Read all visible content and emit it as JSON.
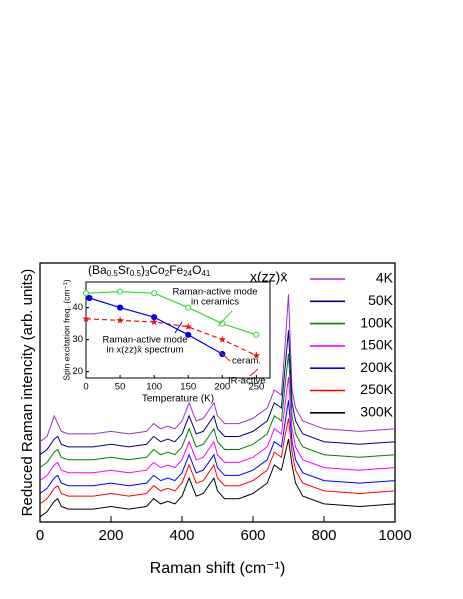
{
  "chart_data": [
    {
      "type": "line",
      "label": "x(zz)x̄",
      "x_label": "Raman shift (cm⁻¹)",
      "y_label": "Reduced Raman intencity (arb. units)",
      "x": [
        0,
        20,
        40,
        50,
        60,
        80,
        100,
        150,
        200,
        250,
        300,
        320,
        340,
        360,
        380,
        400,
        420,
        440,
        460,
        480,
        490,
        500,
        520,
        560,
        600,
        640,
        660,
        680,
        690,
        700,
        710,
        720,
        740,
        800,
        900,
        1000
      ],
      "xlim": [
        0,
        1000
      ],
      "xticks": [
        0,
        200,
        400,
        600,
        800,
        1000
      ],
      "ylim": [
        0,
        100
      ],
      "legend": "right",
      "series": [
        {
          "name": "4K",
          "color": "#9933cc",
          "values": [
            31,
            33,
            41,
            38,
            35,
            34,
            34,
            34,
            35,
            34,
            35,
            38,
            36,
            37,
            36,
            39,
            46,
            39,
            40,
            44,
            46,
            41,
            38,
            38,
            40,
            44,
            51,
            49,
            67,
            88,
            51,
            44,
            39,
            36,
            35,
            36
          ]
        },
        {
          "name": "50K",
          "color": "#000080",
          "values": [
            26,
            28,
            32,
            33,
            30,
            29,
            29,
            29,
            30,
            29,
            30,
            33,
            31,
            32,
            31,
            34,
            41,
            34,
            35,
            39,
            41,
            36,
            33,
            33,
            35,
            39,
            46,
            44,
            59,
            74,
            46,
            39,
            34,
            31,
            30,
            31
          ]
        },
        {
          "name": "100K",
          "color": "#008000",
          "values": [
            21,
            23,
            27,
            28,
            25,
            24,
            24,
            24,
            25,
            24,
            25,
            28,
            26,
            27,
            26,
            29,
            36,
            29,
            30,
            34,
            36,
            31,
            28,
            28,
            30,
            34,
            41,
            39,
            52,
            65,
            41,
            34,
            29,
            26,
            25,
            26
          ]
        },
        {
          "name": "150K",
          "color": "#ff00ff",
          "values": [
            16,
            18,
            22,
            23,
            20,
            19,
            19,
            19,
            20,
            19,
            20,
            23,
            21,
            22,
            21,
            24,
            31,
            24,
            25,
            29,
            31,
            26,
            23,
            23,
            25,
            29,
            36,
            34,
            45,
            56,
            36,
            29,
            24,
            21,
            20,
            21
          ]
        },
        {
          "name": "200K",
          "color": "#0000ff",
          "values": [
            11,
            13,
            17,
            18,
            15,
            14,
            14,
            14,
            15,
            14,
            15,
            18,
            16,
            17,
            16,
            19,
            26,
            19,
            20,
            24,
            26,
            21,
            18,
            18,
            20,
            24,
            31,
            29,
            38,
            47,
            31,
            24,
            19,
            16,
            15,
            16
          ]
        },
        {
          "name": "250K",
          "color": "#ff0000",
          "values": [
            7,
            9,
            13,
            14,
            11,
            10,
            10,
            10,
            11,
            10,
            11,
            14,
            12,
            13,
            12,
            15,
            22,
            15,
            16,
            20,
            22,
            17,
            14,
            14,
            16,
            20,
            27,
            25,
            33,
            40,
            27,
            20,
            15,
            12,
            11,
            12
          ]
        },
        {
          "name": "300K",
          "color": "#000000",
          "values": [
            2,
            4,
            8,
            9,
            6,
            5,
            5,
            5,
            6,
            5,
            6,
            9,
            7,
            8,
            7,
            10,
            17,
            10,
            11,
            15,
            17,
            12,
            9,
            9,
            11,
            15,
            22,
            20,
            26,
            32,
            22,
            15,
            10,
            7,
            6,
            7
          ]
        }
      ]
    },
    {
      "type": "line",
      "title": [
        "(Ba",
        "0.5",
        "Sr",
        "0.5",
        ")",
        "3",
        "Co",
        "2",
        "Fe",
        "24",
        "O",
        "41"
      ],
      "x_label": "Temperature (K)",
      "y_label": "Spin excitation freq. (cm⁻¹)",
      "xlim": [
        0,
        270
      ],
      "xticks": [
        0,
        50,
        100,
        150,
        200,
        250
      ],
      "ylim": [
        18,
        48
      ],
      "yticks": [
        20,
        30,
        40
      ],
      "series": [
        {
          "color": "#33dd33",
          "marker": "open-circle",
          "dash": false,
          "x": [
            0,
            50,
            100,
            150,
            200,
            250
          ],
          "values": [
            44.5,
            45,
            44.5,
            40,
            35,
            31.5
          ]
        },
        {
          "color": "#ee1111",
          "marker": "star",
          "dash": true,
          "x": [
            0,
            50,
            100,
            150,
            200,
            250
          ],
          "values": [
            36.5,
            36,
            35.5,
            34,
            30,
            25
          ]
        },
        {
          "color": "#0000ee",
          "marker": "filled-circle",
          "dash": false,
          "x": [
            5,
            50,
            100,
            150,
            200
          ],
          "values": [
            43,
            40,
            37,
            31.5,
            25.5
          ]
        }
      ],
      "annotations": [
        {
          "text": [
            "Raman-active mode",
            "in ceramics"
          ],
          "color": "#33dd33"
        },
        {
          "text": [
            "Raman-active mode",
            "in x(zz)x̄ spectrum"
          ],
          "color": "#0000ee"
        },
        {
          "text": [
            "ceram."
          ],
          "color": "#ee1111"
        },
        {
          "text": [
            "IR-active"
          ],
          "color": "#ee1111"
        }
      ]
    }
  ]
}
